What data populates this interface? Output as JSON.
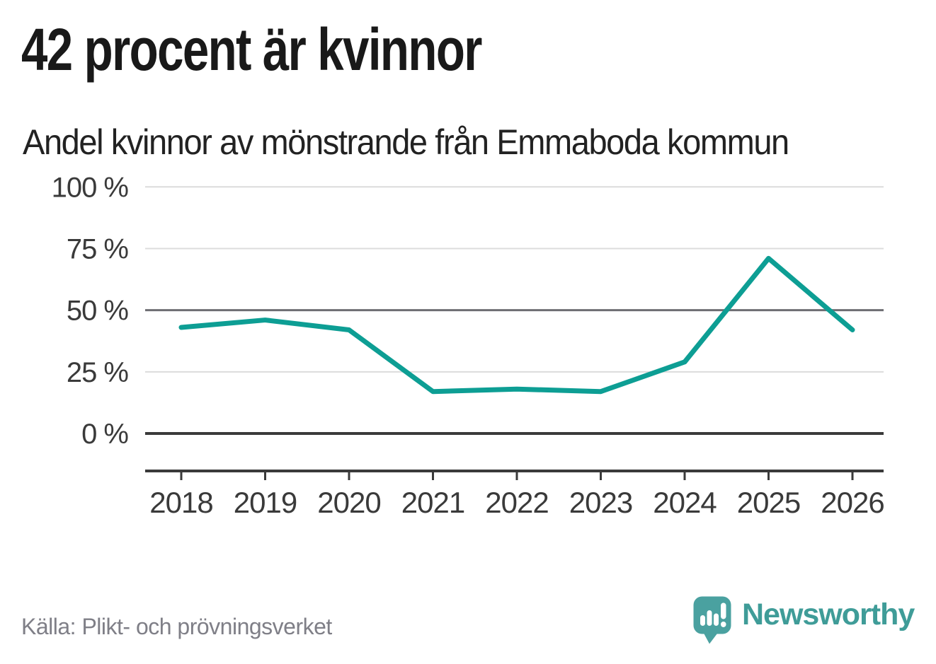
{
  "header": {
    "title": "42 procent är kvinnor",
    "subtitle": "Andel kvinnor av mönstrande från Emmaboda kommun"
  },
  "footer": {
    "source": "Källa: Plikt- och prövningsverket",
    "brand": "Newsworthy",
    "brand_icon": "newsworthy-speech-bubble-bar-chart-icon"
  },
  "colors": {
    "line": "#0d9e94",
    "grid_light": "#dcdcdc",
    "grid_mid": "#6e6e73",
    "axis_dark": "#3a3a3a",
    "axis_label": "#3a3a3a",
    "title_text": "#191919",
    "source_text": "#7f7f87",
    "logo_bubble": "#4aa1a0",
    "brand_teal": "#3f9c98"
  },
  "chart_data": {
    "type": "line",
    "title": "42 procent är kvinnor",
    "subtitle": "Andel kvinnor av mönstrande från Emmaboda kommun",
    "x": [
      2018,
      2019,
      2020,
      2021,
      2022,
      2023,
      2024,
      2025,
      2026
    ],
    "series": [
      {
        "name": "Andel kvinnor av mönstrande",
        "values": [
          43,
          46,
          42,
          17,
          18,
          17,
          29,
          71,
          42
        ]
      }
    ],
    "unit": "%",
    "ylim": [
      0,
      100
    ],
    "yticks": [
      0,
      25,
      50,
      75,
      100
    ],
    "ytick_labels": [
      "0 %",
      "25 %",
      "50 %",
      "75 %",
      "100 %"
    ],
    "grid": "horizontal",
    "legend": "none",
    "annotations": [],
    "source": "Källa: Plikt- och prövningsverket"
  }
}
